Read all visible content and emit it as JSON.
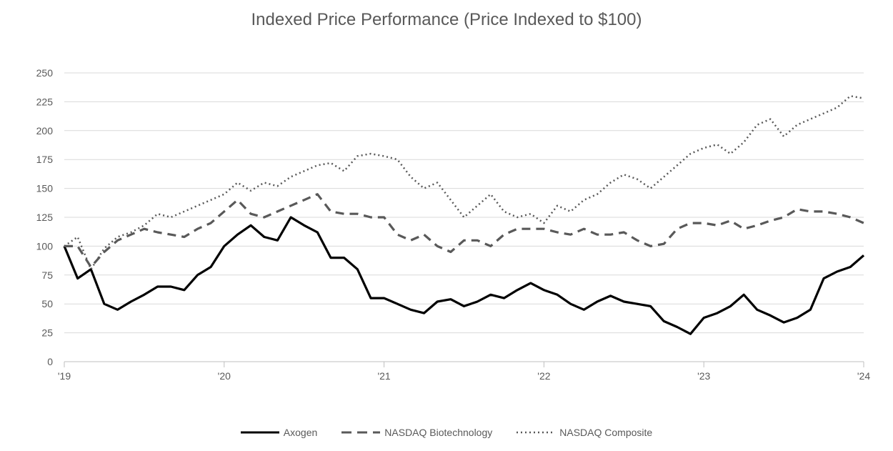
{
  "chart_data": {
    "type": "line",
    "title": "Indexed Price Performance (Price Indexed to $100)",
    "xlabel": "",
    "ylabel": "",
    "ylim": [
      0,
      250
    ],
    "yticks": [
      0,
      25,
      50,
      75,
      100,
      125,
      150,
      175,
      200,
      225,
      250
    ],
    "xticks": [
      {
        "date": "2019-01",
        "label": "'19"
      },
      {
        "date": "2020-01",
        "label": "'20"
      },
      {
        "date": "2021-01",
        "label": "'21"
      },
      {
        "date": "2022-01",
        "label": "'22"
      },
      {
        "date": "2023-01",
        "label": "'23"
      },
      {
        "date": "2024-01",
        "label": "'24"
      }
    ],
    "xlim": [
      "2019-01",
      "2024-01"
    ],
    "grid": "horizontal",
    "legend_position": "bottom",
    "x": [
      "2019-01",
      "2019-02",
      "2019-03",
      "2019-04",
      "2019-05",
      "2019-06",
      "2019-07",
      "2019-08",
      "2019-09",
      "2019-10",
      "2019-11",
      "2019-12",
      "2020-01",
      "2020-02",
      "2020-03",
      "2020-04",
      "2020-05",
      "2020-06",
      "2020-07",
      "2020-08",
      "2020-09",
      "2020-10",
      "2020-11",
      "2020-12",
      "2021-01",
      "2021-02",
      "2021-03",
      "2021-04",
      "2021-05",
      "2021-06",
      "2021-07",
      "2021-08",
      "2021-09",
      "2021-10",
      "2021-11",
      "2021-12",
      "2022-01",
      "2022-02",
      "2022-03",
      "2022-04",
      "2022-05",
      "2022-06",
      "2022-07",
      "2022-08",
      "2022-09",
      "2022-10",
      "2022-11",
      "2022-12",
      "2023-01",
      "2023-02",
      "2023-03",
      "2023-04",
      "2023-05",
      "2023-06",
      "2023-07",
      "2023-08",
      "2023-09",
      "2023-10",
      "2023-11",
      "2023-12",
      "2024-01"
    ],
    "series": [
      {
        "name": "Axogen",
        "color": "#000000",
        "style": "solid",
        "values": [
          100,
          72,
          80,
          50,
          45,
          52,
          58,
          65,
          65,
          62,
          75,
          82,
          100,
          110,
          118,
          108,
          105,
          125,
          118,
          112,
          90,
          90,
          80,
          55,
          55,
          50,
          45,
          42,
          52,
          54,
          48,
          52,
          58,
          55,
          62,
          68,
          62,
          58,
          50,
          45,
          52,
          57,
          52,
          50,
          48,
          35,
          30,
          24,
          38,
          42,
          48,
          58,
          45,
          40,
          34,
          38,
          45,
          72,
          78,
          82,
          92
        ]
      },
      {
        "name": "NASDAQ Biotechnology",
        "color": "#595959",
        "style": "dashed",
        "values": [
          100,
          100,
          82,
          95,
          105,
          110,
          115,
          112,
          110,
          108,
          115,
          120,
          130,
          140,
          128,
          125,
          130,
          135,
          140,
          145,
          130,
          128,
          128,
          125,
          125,
          110,
          105,
          110,
          100,
          95,
          105,
          105,
          100,
          110,
          115,
          115,
          115,
          112,
          110,
          115,
          110,
          110,
          112,
          105,
          100,
          102,
          115,
          120,
          120,
          118,
          122,
          115,
          118,
          122,
          125,
          132,
          130,
          130,
          128,
          125,
          120
        ]
      },
      {
        "name": "NASDAQ Composite",
        "color": "#595959",
        "style": "dotted",
        "values": [
          100,
          108,
          80,
          98,
          108,
          112,
          118,
          128,
          125,
          130,
          135,
          140,
          145,
          155,
          148,
          155,
          152,
          160,
          165,
          170,
          172,
          165,
          178,
          180,
          178,
          175,
          160,
          150,
          155,
          140,
          125,
          135,
          145,
          130,
          125,
          128,
          120,
          135,
          130,
          140,
          145,
          155,
          162,
          158,
          150,
          160,
          170,
          180,
          185,
          188,
          180,
          190,
          205,
          210,
          195,
          205,
          210,
          215,
          220,
          230,
          228
        ]
      }
    ]
  }
}
